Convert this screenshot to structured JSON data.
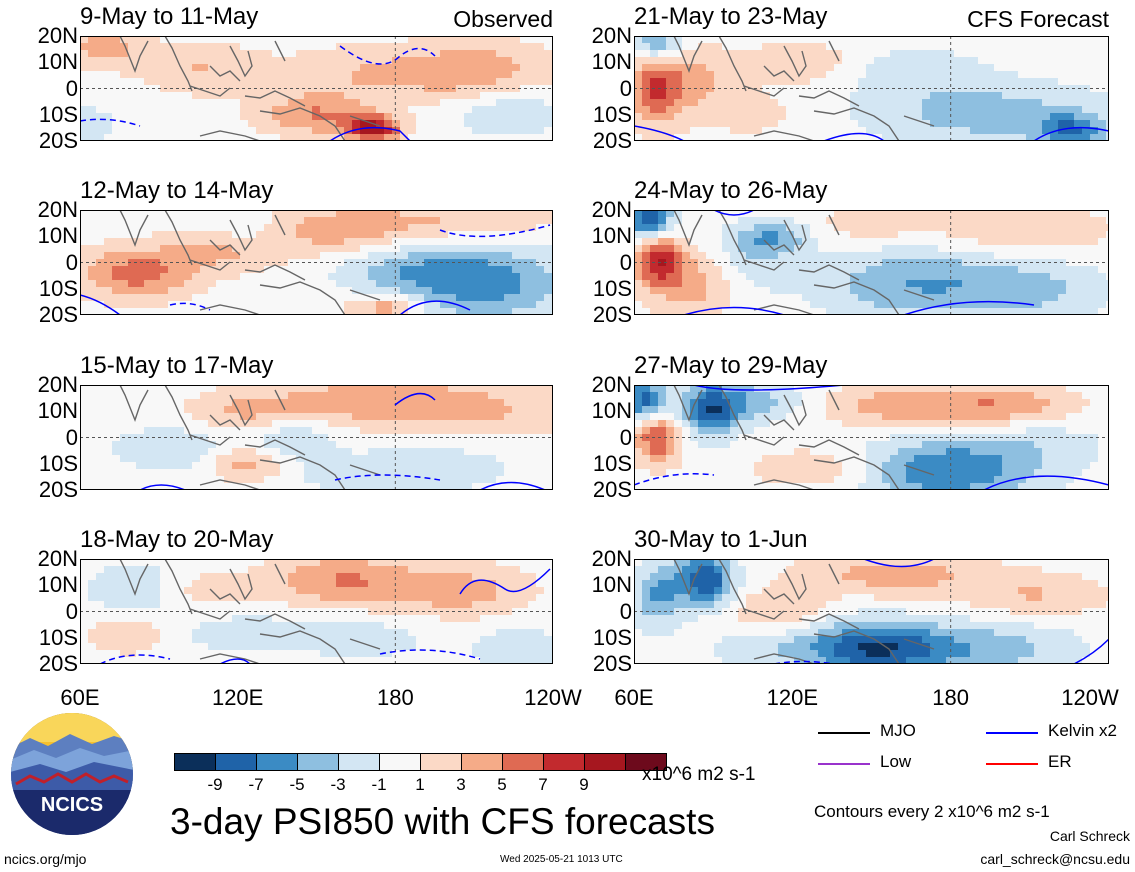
{
  "chart_data": [
    {
      "type": "heatmap",
      "title": "9-May to 11-May",
      "label": "Observed",
      "column": "observed"
    },
    {
      "type": "heatmap",
      "title": "12-May to 14-May",
      "column": "observed"
    },
    {
      "type": "heatmap",
      "title": "15-May to 17-May",
      "column": "observed"
    },
    {
      "type": "heatmap",
      "title": "18-May to 20-May",
      "column": "observed"
    },
    {
      "type": "heatmap",
      "title": "21-May to 23-May",
      "label": "CFS Forecast",
      "column": "forecast"
    },
    {
      "type": "heatmap",
      "title": "24-May to 26-May",
      "column": "forecast"
    },
    {
      "type": "heatmap",
      "title": "27-May to 29-May",
      "column": "forecast"
    },
    {
      "type": "heatmap",
      "title": "30-May to 1-Jun",
      "column": "forecast"
    }
  ],
  "axes": {
    "lat_ticks": [
      "20N",
      "10N",
      "0",
      "10S",
      "20S"
    ],
    "lon_ticks": [
      "60E",
      "120E",
      "180",
      "120W"
    ],
    "lat_range": [
      -20,
      20
    ],
    "lon_range": [
      60,
      240
    ]
  },
  "colorbar": {
    "tick_labels": [
      "-9",
      "-7",
      "-5",
      "-3",
      "-1",
      "1",
      "3",
      "5",
      "7",
      "9"
    ],
    "levels": [
      -11,
      -9,
      -7,
      -5,
      -3,
      -1,
      1,
      3,
      5,
      7,
      9,
      11
    ],
    "colors": [
      "#0b2f5a",
      "#1f63a8",
      "#3b8bc4",
      "#8ebfe0",
      "#d3e6f3",
      "#f8f8f8",
      "#fbd9c6",
      "#f5ab88",
      "#df6a53",
      "#c22a2e",
      "#a6171f",
      "#6d0a1c"
    ],
    "units": "x10^6 m2 s-1"
  },
  "legend": [
    {
      "label": "MJO",
      "color": "#000000"
    },
    {
      "label": "Kelvin x2",
      "color": "#0000ff"
    },
    {
      "label": "Low",
      "color": "#9932cc"
    },
    {
      "label": "ER",
      "color": "#ff0000"
    }
  ],
  "contour_note": "Contours every 2 x10^6 m2 s-1",
  "main_title": "3-day PSI850 with CFS forecasts",
  "logo_text": "NCICS",
  "footer": {
    "url": "ncics.org/mjo",
    "timestamp": "Wed 2025-05-21 1013 UTC",
    "author": "Carl Schreck",
    "email": "carl_schreck@ncsu.edu"
  }
}
